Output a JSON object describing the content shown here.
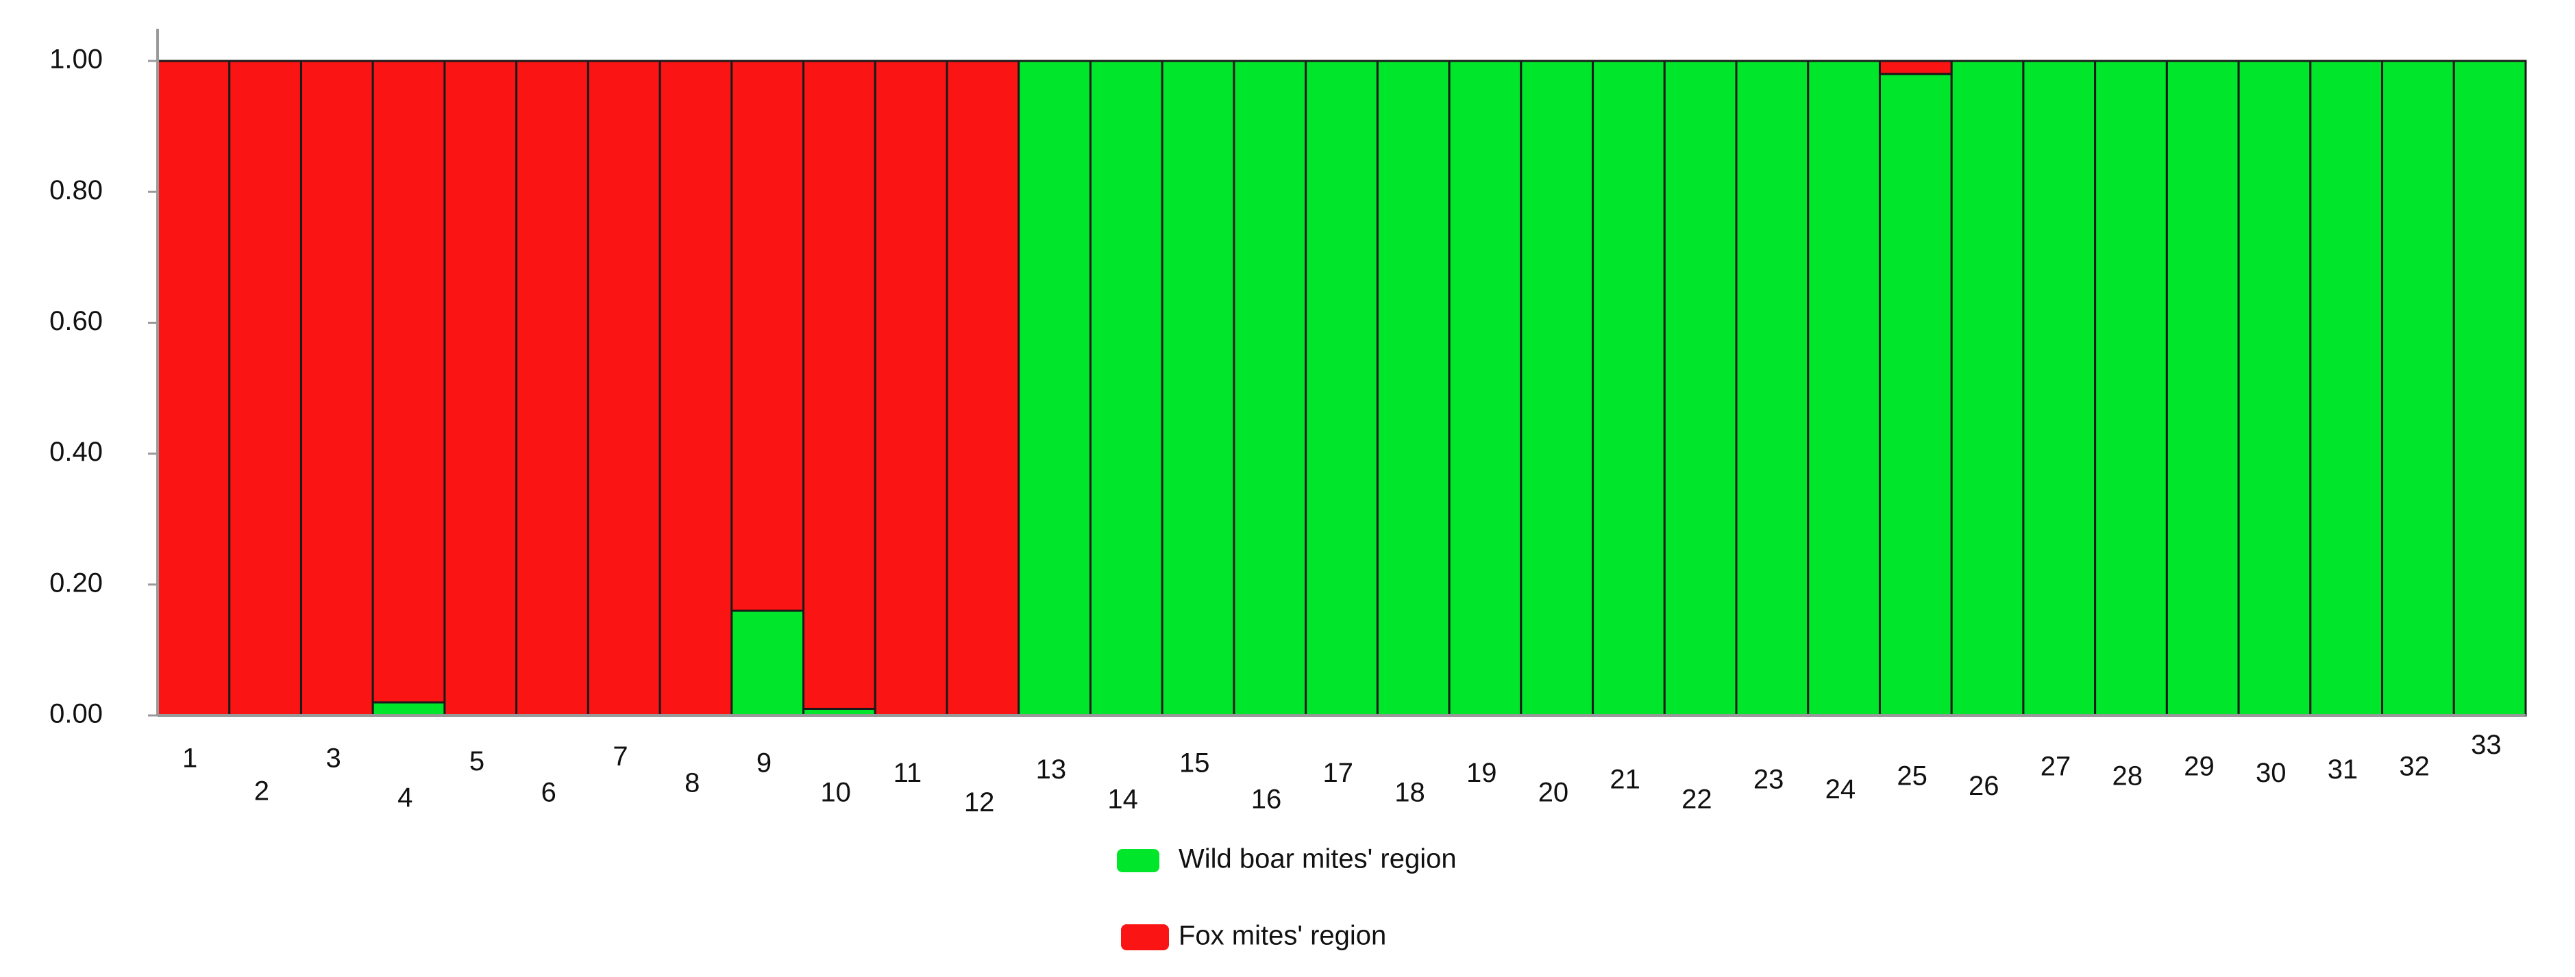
{
  "chart_data": {
    "type": "stacked_bar",
    "categories": [
      "1",
      "2",
      "3",
      "4",
      "5",
      "6",
      "7",
      "8",
      "9",
      "10",
      "11",
      "12",
      "13",
      "14",
      "15",
      "16",
      "17",
      "18",
      "19",
      "20",
      "21",
      "22",
      "23",
      "24",
      "25",
      "26",
      "27",
      "28",
      "29",
      "30",
      "31",
      "32",
      "33"
    ],
    "series": [
      {
        "name": "Wild boar mites' region",
        "color": "#00e62a",
        "values": [
          0,
          0,
          0,
          0.02,
          0,
          0,
          0,
          0,
          0.16,
          0.01,
          0,
          0,
          1,
          1,
          1,
          1,
          1,
          1,
          1,
          1,
          1,
          1,
          1,
          1,
          0.98,
          1,
          1,
          1,
          1,
          1,
          1,
          1,
          1
        ]
      },
      {
        "name": "Fox mites' region",
        "color": "#fa1414",
        "values": [
          1,
          1,
          1,
          0.98,
          1,
          1,
          1,
          1,
          0.84,
          0.99,
          1,
          1,
          0,
          0,
          0,
          0,
          0,
          0,
          0,
          0,
          0,
          0,
          0,
          0,
          0.02,
          0,
          0,
          0,
          0,
          0,
          0,
          0,
          0
        ]
      }
    ],
    "ylim": [
      0,
      1
    ],
    "yticks": [
      {
        "value": 0,
        "label": "0.00"
      },
      {
        "value": 0.2,
        "label": "0.20"
      },
      {
        "value": 0.4,
        "label": "0.40"
      },
      {
        "value": 0.6,
        "label": "0.60"
      },
      {
        "value": 0.8,
        "label": "0.80"
      },
      {
        "value": 1,
        "label": "1.00"
      }
    ],
    "grid": false
  }
}
